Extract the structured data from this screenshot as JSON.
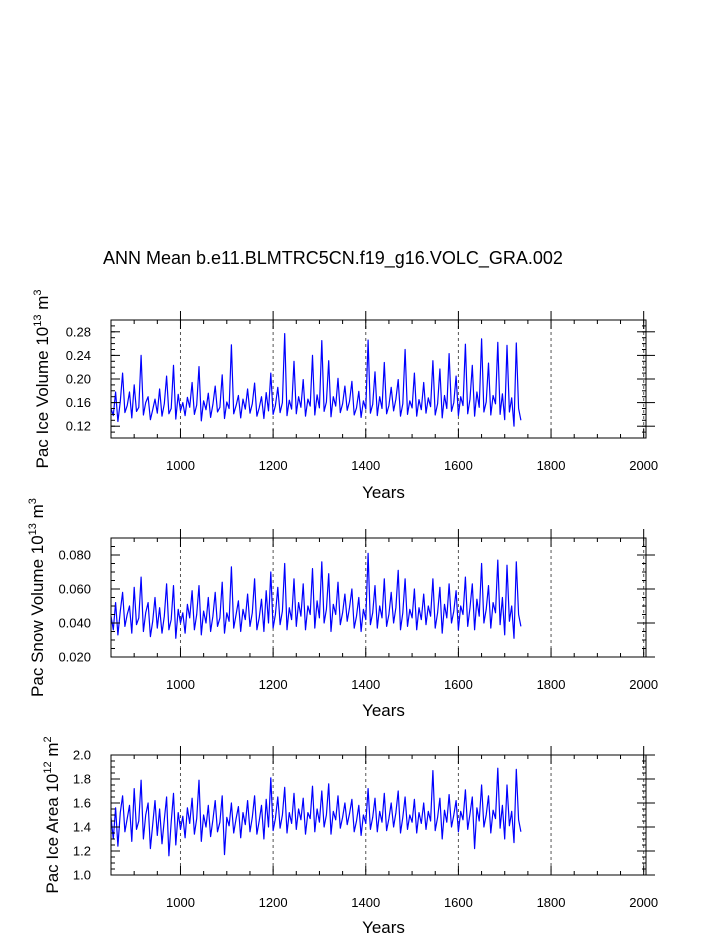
{
  "title": "ANN Mean b.e11.BLMTRC5CN.f19_g16.VOLC_GRA.002",
  "colors": {
    "series": "#0000ff",
    "frame": "#000000",
    "refline": "#555555"
  },
  "chart_data": [
    {
      "type": "line",
      "xlabel": "Years",
      "ylabel": {
        "base": "Pac Ice Volume 10",
        "exp1": "13",
        "mid": " m",
        "exp2": "3"
      },
      "xlim": [
        850,
        2005
      ],
      "ylim": [
        0.1,
        0.3
      ],
      "x_ticks": [
        1000,
        1200,
        1400,
        1600,
        1800,
        2000
      ],
      "y_ticks": [
        0.12,
        0.16,
        0.2,
        0.24,
        0.28
      ],
      "y_tick_labels": [
        "0.12",
        "0.16",
        "0.20",
        "0.24",
        "0.28"
      ],
      "y_minor_step": 0.01,
      "ref_lines_x": [
        1000,
        1200,
        1400,
        1600,
        1800,
        2000
      ],
      "series": [
        {
          "x_start": 850,
          "x_step": 5,
          "values": [
            0.15,
            0.138,
            0.178,
            0.128,
            0.162,
            0.21,
            0.143,
            0.155,
            0.178,
            0.134,
            0.19,
            0.145,
            0.152,
            0.24,
            0.139,
            0.16,
            0.17,
            0.131,
            0.148,
            0.166,
            0.142,
            0.183,
            0.137,
            0.158,
            0.205,
            0.141,
            0.15,
            0.223,
            0.132,
            0.174,
            0.146,
            0.16,
            0.138,
            0.169,
            0.152,
            0.194,
            0.14,
            0.156,
            0.221,
            0.129,
            0.163,
            0.148,
            0.176,
            0.135,
            0.157,
            0.188,
            0.144,
            0.152,
            0.207,
            0.133,
            0.161,
            0.15,
            0.258,
            0.141,
            0.155,
            0.172,
            0.134,
            0.166,
            0.149,
            0.183,
            0.142,
            0.158,
            0.193,
            0.137,
            0.151,
            0.17,
            0.133,
            0.177,
            0.146,
            0.21,
            0.14,
            0.155,
            0.186,
            0.143,
            0.16,
            0.277,
            0.138,
            0.164,
            0.149,
            0.23,
            0.141,
            0.17,
            0.152,
            0.199,
            0.137,
            0.166,
            0.154,
            0.24,
            0.139,
            0.173,
            0.151,
            0.265,
            0.145,
            0.161,
            0.231,
            0.136,
            0.17,
            0.154,
            0.201,
            0.143,
            0.158,
            0.188,
            0.147,
            0.162,
            0.196,
            0.139,
            0.151,
            0.179,
            0.135,
            0.163,
            0.149,
            0.266,
            0.142,
            0.157,
            0.212,
            0.138,
            0.17,
            0.15,
            0.228,
            0.141,
            0.155,
            0.186,
            0.146,
            0.166,
            0.199,
            0.137,
            0.158,
            0.25,
            0.14,
            0.163,
            0.151,
            0.21,
            0.137,
            0.165,
            0.148,
            0.194,
            0.142,
            0.168,
            0.153,
            0.231,
            0.139,
            0.158,
            0.217,
            0.134,
            0.172,
            0.15,
            0.243,
            0.145,
            0.16,
            0.205,
            0.138,
            0.17,
            0.155,
            0.259,
            0.141,
            0.166,
            0.223,
            0.137,
            0.178,
            0.152,
            0.268,
            0.144,
            0.161,
            0.227,
            0.139,
            0.172,
            0.158,
            0.262,
            0.14,
            0.175,
            0.131,
            0.257,
            0.144,
            0.168,
            0.12,
            0.261,
            0.15,
            0.13
          ]
        }
      ]
    },
    {
      "type": "line",
      "xlabel": "Years",
      "ylabel": {
        "base": "Pac Snow Volume 10",
        "exp1": "13",
        "mid": " m",
        "exp2": "3"
      },
      "xlim": [
        850,
        2005
      ],
      "ylim": [
        0.02,
        0.09
      ],
      "x_ticks": [
        1000,
        1200,
        1400,
        1600,
        1800,
        2000
      ],
      "y_ticks": [
        0.02,
        0.04,
        0.06,
        0.08
      ],
      "y_tick_labels": [
        "0.020",
        "0.040",
        "0.060",
        "0.080"
      ],
      "y_minor_step": 0.005,
      "ref_lines_x": [
        1000,
        1200,
        1400,
        1600,
        1800,
        2000
      ],
      "series": [
        {
          "x_start": 850,
          "x_step": 5,
          "values": [
            0.044,
            0.036,
            0.052,
            0.033,
            0.047,
            0.058,
            0.038,
            0.045,
            0.05,
            0.034,
            0.061,
            0.039,
            0.043,
            0.067,
            0.035,
            0.046,
            0.052,
            0.032,
            0.041,
            0.055,
            0.037,
            0.049,
            0.034,
            0.044,
            0.063,
            0.036,
            0.042,
            0.062,
            0.031,
            0.048,
            0.04,
            0.046,
            0.034,
            0.051,
            0.043,
            0.059,
            0.036,
            0.045,
            0.062,
            0.033,
            0.047,
            0.04,
            0.055,
            0.035,
            0.044,
            0.058,
            0.038,
            0.043,
            0.064,
            0.034,
            0.046,
            0.041,
            0.073,
            0.037,
            0.045,
            0.053,
            0.035,
            0.048,
            0.042,
            0.057,
            0.038,
            0.046,
            0.066,
            0.036,
            0.043,
            0.054,
            0.035,
            0.059,
            0.04,
            0.07,
            0.037,
            0.045,
            0.061,
            0.039,
            0.047,
            0.075,
            0.036,
            0.049,
            0.042,
            0.066,
            0.038,
            0.052,
            0.044,
            0.063,
            0.036,
            0.05,
            0.045,
            0.072,
            0.037,
            0.053,
            0.043,
            0.076,
            0.04,
            0.048,
            0.069,
            0.035,
            0.051,
            0.045,
            0.064,
            0.039,
            0.046,
            0.057,
            0.041,
            0.049,
            0.06,
            0.037,
            0.044,
            0.055,
            0.035,
            0.048,
            0.042,
            0.081,
            0.039,
            0.046,
            0.062,
            0.037,
            0.05,
            0.043,
            0.066,
            0.038,
            0.045,
            0.058,
            0.04,
            0.049,
            0.071,
            0.036,
            0.046,
            0.066,
            0.038,
            0.048,
            0.043,
            0.06,
            0.036,
            0.049,
            0.042,
            0.057,
            0.039,
            0.05,
            0.044,
            0.066,
            0.037,
            0.046,
            0.061,
            0.034,
            0.051,
            0.043,
            0.063,
            0.04,
            0.047,
            0.059,
            0.036,
            0.05,
            0.045,
            0.067,
            0.038,
            0.049,
            0.063,
            0.036,
            0.054,
            0.044,
            0.075,
            0.04,
            0.048,
            0.062,
            0.037,
            0.052,
            0.046,
            0.077,
            0.039,
            0.055,
            0.033,
            0.074,
            0.041,
            0.05,
            0.031,
            0.076,
            0.045,
            0.038
          ]
        }
      ]
    },
    {
      "type": "line",
      "xlabel": "Years",
      "ylabel": {
        "base": "Pac Ice Area 10",
        "exp1": "12",
        "mid": " m",
        "exp2": "2"
      },
      "xlim": [
        850,
        2005
      ],
      "ylim": [
        1.0,
        2.0
      ],
      "x_ticks": [
        1000,
        1200,
        1400,
        1600,
        1800,
        2000
      ],
      "y_ticks": [
        1.0,
        1.2,
        1.4,
        1.6,
        1.8,
        2.0
      ],
      "y_tick_labels": [
        "1.0",
        "1.2",
        "1.4",
        "1.6",
        "1.8",
        "2.0"
      ],
      "y_minor_step": 0.05,
      "ref_lines_x": [
        1000,
        1200,
        1400,
        1600,
        1800,
        2000
      ],
      "series": [
        {
          "x_start": 850,
          "x_step": 5,
          "values": [
            1.48,
            1.3,
            1.56,
            1.24,
            1.52,
            1.66,
            1.36,
            1.47,
            1.58,
            1.28,
            1.72,
            1.38,
            1.45,
            1.79,
            1.3,
            1.5,
            1.6,
            1.22,
            1.42,
            1.62,
            1.33,
            1.55,
            1.26,
            1.46,
            1.65,
            1.16,
            1.44,
            1.68,
            1.25,
            1.52,
            1.38,
            1.49,
            1.31,
            1.56,
            1.43,
            1.64,
            1.34,
            1.47,
            1.79,
            1.28,
            1.5,
            1.4,
            1.58,
            1.32,
            1.46,
            1.62,
            1.36,
            1.44,
            1.66,
            1.17,
            1.48,
            1.41,
            1.6,
            1.35,
            1.47,
            1.57,
            1.31,
            1.52,
            1.42,
            1.62,
            1.36,
            1.48,
            1.66,
            1.34,
            1.45,
            1.58,
            1.3,
            1.63,
            1.4,
            1.81,
            1.37,
            1.47,
            1.65,
            1.39,
            1.5,
            1.73,
            1.35,
            1.52,
            1.43,
            1.68,
            1.38,
            1.55,
            1.46,
            1.64,
            1.34,
            1.52,
            1.47,
            1.74,
            1.36,
            1.55,
            1.44,
            1.7,
            1.4,
            1.5,
            1.76,
            1.34,
            1.53,
            1.46,
            1.66,
            1.39,
            1.48,
            1.6,
            1.42,
            1.51,
            1.63,
            1.36,
            1.45,
            1.58,
            1.33,
            1.5,
            1.43,
            1.72,
            1.38,
            1.48,
            1.64,
            1.36,
            1.53,
            1.44,
            1.68,
            1.37,
            1.47,
            1.6,
            1.4,
            1.52,
            1.7,
            1.35,
            1.48,
            1.65,
            1.38,
            1.5,
            1.44,
            1.63,
            1.35,
            1.52,
            1.43,
            1.6,
            1.38,
            1.53,
            1.45,
            1.87,
            1.37,
            1.48,
            1.64,
            1.3,
            1.54,
            1.44,
            1.67,
            1.4,
            1.5,
            1.62,
            1.36,
            1.53,
            1.46,
            1.71,
            1.38,
            1.51,
            1.65,
            1.22,
            1.56,
            1.45,
            1.75,
            1.4,
            1.5,
            1.66,
            1.35,
            1.54,
            1.47,
            1.89,
            1.39,
            1.58,
            1.3,
            1.75,
            1.41,
            1.53,
            1.27,
            1.88,
            1.46,
            1.36
          ]
        }
      ]
    }
  ]
}
